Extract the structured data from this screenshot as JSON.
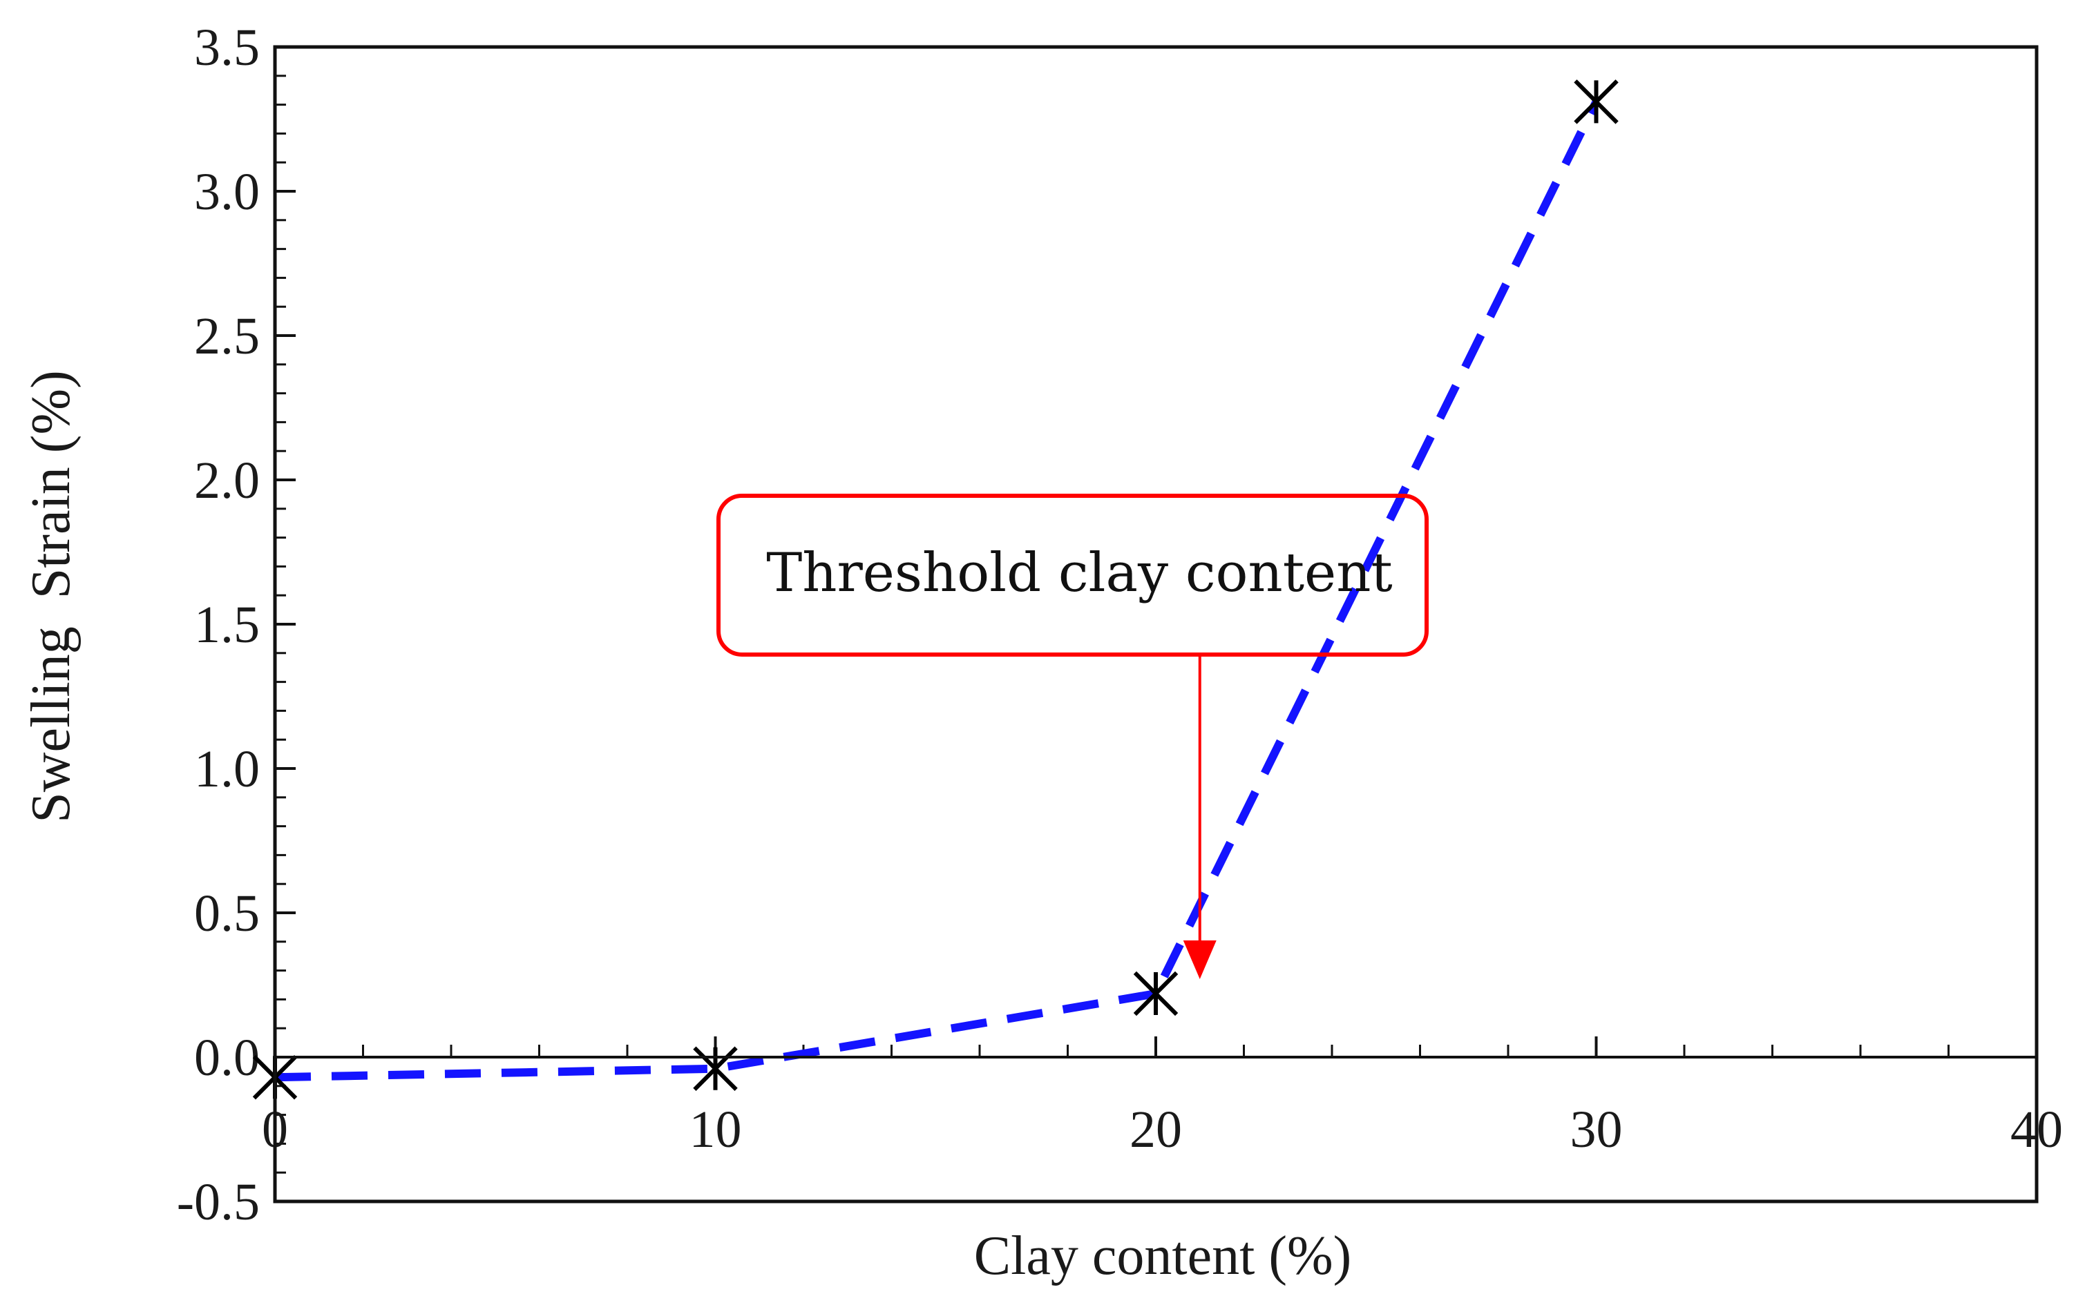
{
  "chart_data": {
    "type": "line",
    "xlabel": "Clay content (%)",
    "ylabel": "Swelling  Strain (%)",
    "xlim": [
      0,
      40
    ],
    "ylim": [
      -0.5,
      3.5
    ],
    "x_ticks": [
      0,
      10,
      20,
      30,
      40
    ],
    "x_tick_labels": [
      "0",
      "10",
      "20",
      "30",
      "40"
    ],
    "y_ticks": [
      -0.5,
      0.0,
      0.5,
      1.0,
      1.5,
      2.0,
      2.5,
      3.0,
      3.5
    ],
    "y_tick_labels": [
      "-0.5",
      "0.0",
      "0.5",
      "1.0",
      "1.5",
      "2.0",
      "2.5",
      "3.0",
      "3.5"
    ],
    "x_minor_step": 2,
    "y_minor_step": 0.1,
    "grid": false,
    "series": [
      {
        "x": [
          0,
          10,
          20,
          30
        ],
        "y": [
          -0.07,
          -0.04,
          0.22,
          3.31
        ],
        "line_style": "dashed",
        "line_color": "#1414ff",
        "marker": "asterisk",
        "marker_color": "#000000"
      }
    ],
    "annotations": [
      {
        "text": "Threshold clay content",
        "box_color": "#ff0000",
        "arrow_color": "#ff0000",
        "arrow_target": {
          "x": 21,
          "y": 0.28
        }
      }
    ]
  }
}
